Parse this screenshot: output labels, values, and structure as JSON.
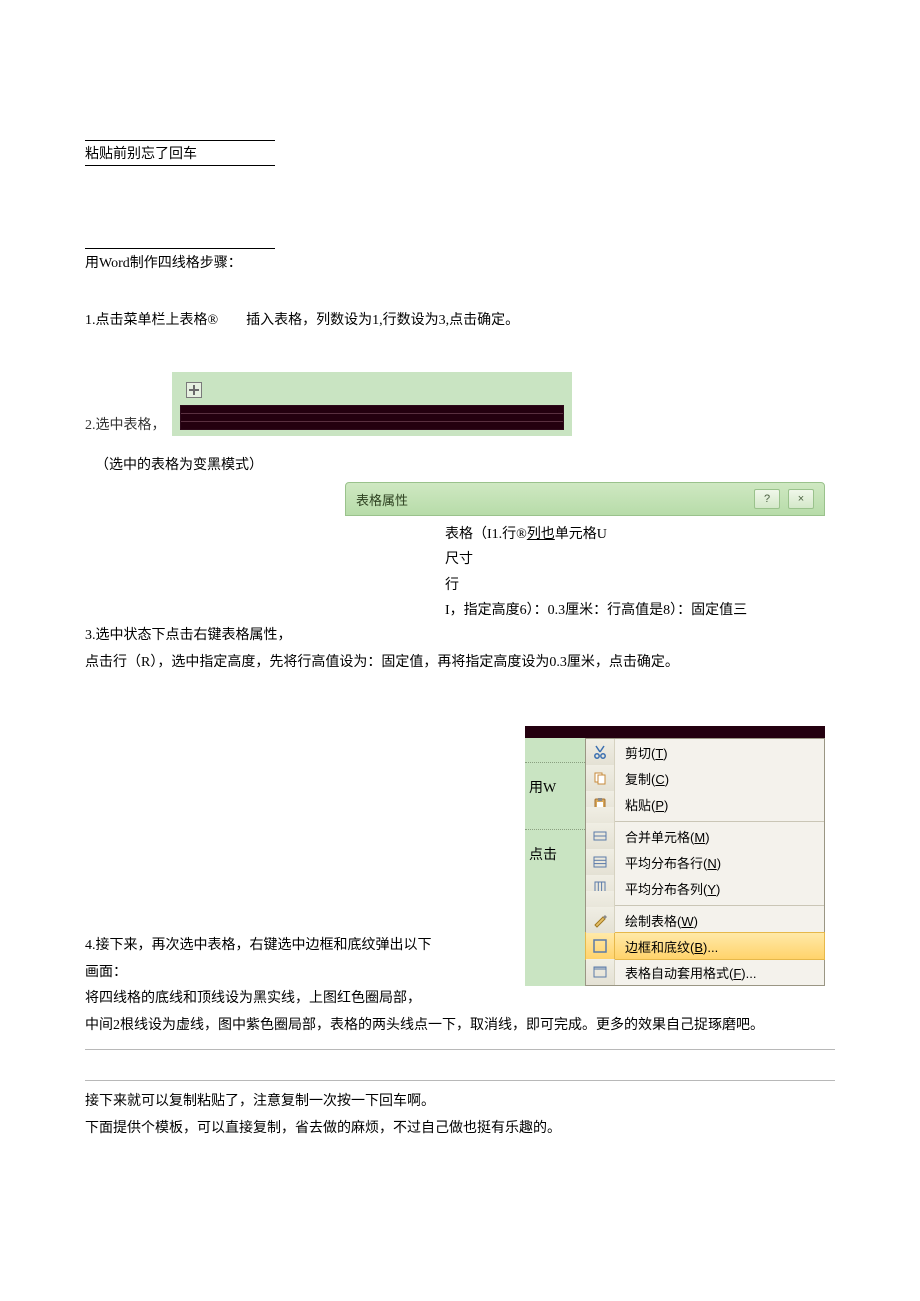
{
  "intro": {
    "note_line": "粘贴前别忘了回车",
    "title": "用Word制作四线格步骤："
  },
  "steps": {
    "s1": "1.点击菜单栏上表格®　　插入表格，列数设为1,行数设为3,点击确定。",
    "s2_label": "2.选中表格，",
    "s2_note": "（选中的表格为变黑模式）",
    "s3_a": "3.选中状态下点击右键表格属性，",
    "s3_b": "点击行（R），选中指定高度，先将行高值设为：固定值，再将指定高度设为0.3厘米，点击确定。",
    "s4_a": "4.接下来，再次选中表格，右键选中边框和底纹弹出以下画面：",
    "s4_b": "将四线格的底线和顶线设为黑实线，上图红色圈局部，",
    "s4_c": "中间2根线设为虚线，图中紫色圈局部，表格的两头线点一下，取消线，即可完成。更多的效果自己捉琢磨吧。"
  },
  "tablePreview": {
    "background": "#c9e4c2",
    "row_color": "#24000f",
    "rows": 3
  },
  "dialog": {
    "title": "表格属性",
    "help": "?",
    "close": "×",
    "body_l1": "表格（I1.行®列也单元格U",
    "body_l1_u": "列也",
    "body_l2": "尺寸",
    "body_l3": "行",
    "body_l4": "I，指定高度6）：0.3厘米：行高值是8）：固定值三"
  },
  "contextMenu": {
    "left_labels": [
      "用W",
      "点击"
    ],
    "items": [
      {
        "icon": "cut",
        "label": "剪切",
        "key": "T"
      },
      {
        "icon": "copy",
        "label": "复制",
        "key": "C"
      },
      {
        "icon": "paste",
        "label": "粘贴",
        "key": "P"
      },
      {
        "icon": "merge",
        "label": "合并单元格",
        "key": "M",
        "sep_before": true
      },
      {
        "icon": "distrow",
        "label": "平均分布各行",
        "key": "N"
      },
      {
        "icon": "distcol",
        "label": "平均分布各列",
        "key": "Y"
      },
      {
        "icon": "draw",
        "label": "绘制表格",
        "key": "W",
        "sep_before": true
      },
      {
        "icon": "border",
        "label": "边框和底纹",
        "key": "B",
        "highlight": true,
        "ellipsis": true
      },
      {
        "icon": "auto",
        "label": "表格自动套用格式",
        "key": "F",
        "ellipsis": true
      }
    ],
    "colors": {
      "menu_bg": "#f4f2ec",
      "highlight_top": "#ffe9a8",
      "highlight_bot": "#ffd36b",
      "green_bg": "#c9e4c2"
    }
  },
  "outro": {
    "l1": "接下来就可以复制粘贴了，注意复制一次按一下回车啊。",
    "l2": "下面提供个模板，可以直接复制，省去做的麻烦，不过自己做也挺有乐趣的。"
  }
}
